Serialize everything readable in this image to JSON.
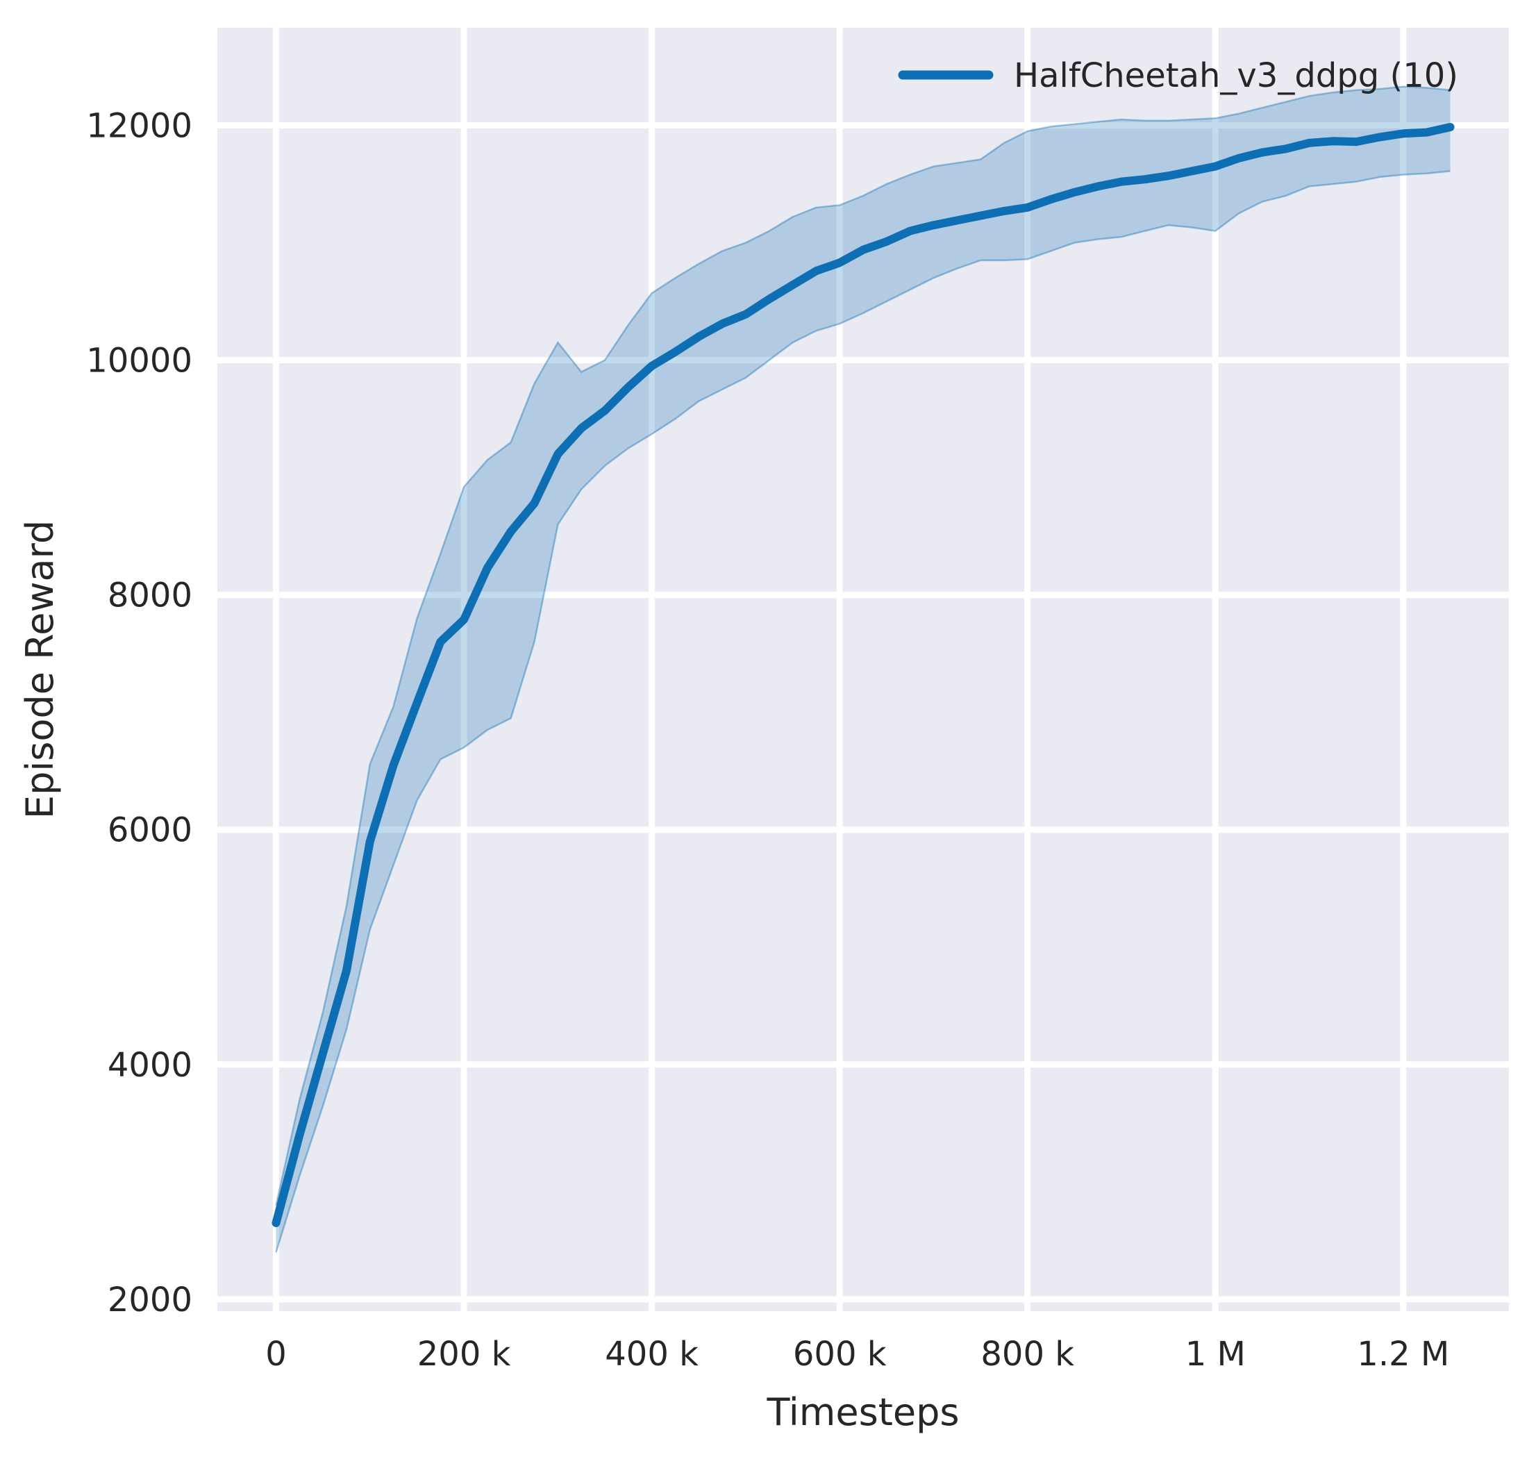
{
  "figure": {
    "background": "#ffffff",
    "plot_background": "#eaeaf2",
    "grid_color": "#ffffff",
    "text_color": "#262626"
  },
  "chart_data": {
    "type": "line",
    "title": "",
    "xlabel": "Timesteps",
    "ylabel": "Episode Reward",
    "grid": true,
    "legend_position": "upper right",
    "xlim": [
      -62500,
      1312500
    ],
    "ylim": [
      1899,
      12831
    ],
    "x_ticks": [
      {
        "value": 0,
        "label": "0"
      },
      {
        "value": 200000,
        "label": "200 k"
      },
      {
        "value": 400000,
        "label": "400 k"
      },
      {
        "value": 600000,
        "label": "600 k"
      },
      {
        "value": 800000,
        "label": "800 k"
      },
      {
        "value": 1000000,
        "label": "1 M"
      },
      {
        "value": 1200000,
        "label": "1.2 M"
      }
    ],
    "y_ticks": [
      {
        "value": 2000,
        "label": "2000"
      },
      {
        "value": 4000,
        "label": "4000"
      },
      {
        "value": 6000,
        "label": "6000"
      },
      {
        "value": 8000,
        "label": "8000"
      },
      {
        "value": 10000,
        "label": "10000"
      },
      {
        "value": 12000,
        "label": "12000"
      }
    ],
    "series": [
      {
        "name": "HalfCheetah_v3_ddpg (10)",
        "color": "#0d6eb4",
        "band_alpha": 0.25,
        "x": [
          0,
          25000,
          50000,
          75000,
          100000,
          125000,
          150000,
          175000,
          200000,
          225000,
          250000,
          275000,
          300000,
          325000,
          350000,
          375000,
          400000,
          425000,
          450000,
          475000,
          500000,
          525000,
          550000,
          575000,
          600000,
          625000,
          650000,
          675000,
          700000,
          725000,
          750000,
          775000,
          800000,
          825000,
          850000,
          875000,
          900000,
          925000,
          950000,
          975000,
          1000000,
          1025000,
          1050000,
          1075000,
          1100000,
          1125000,
          1150000,
          1175000,
          1200000,
          1225000,
          1250000
        ],
        "mean": [
          2650,
          3400,
          4100,
          4800,
          5900,
          6550,
          7080,
          7600,
          7790,
          8230,
          8540,
          8780,
          9200,
          9420,
          9570,
          9770,
          9950,
          10070,
          10200,
          10310,
          10390,
          10520,
          10640,
          10760,
          10830,
          10940,
          11010,
          11100,
          11150,
          11190,
          11230,
          11270,
          11300,
          11370,
          11430,
          11480,
          11520,
          11540,
          11570,
          11610,
          11650,
          11720,
          11770,
          11800,
          11850,
          11865,
          11860,
          11900,
          11930,
          11940,
          11985
        ],
        "band_low": [
          2400,
          3050,
          3650,
          4300,
          5150,
          5700,
          6250,
          6600,
          6700,
          6850,
          6950,
          7600,
          8600,
          8900,
          9100,
          9250,
          9370,
          9500,
          9650,
          9750,
          9850,
          10000,
          10150,
          10250,
          10310,
          10400,
          10500,
          10600,
          10700,
          10780,
          10850,
          10850,
          10860,
          10930,
          11000,
          11030,
          11050,
          11100,
          11150,
          11130,
          11100,
          11250,
          11350,
          11400,
          11480,
          11500,
          11520,
          11560,
          11580,
          11590,
          11610
        ],
        "band_high": [
          2800,
          3700,
          4450,
          5350,
          6560,
          7050,
          7800,
          8350,
          8920,
          9150,
          9300,
          9800,
          10150,
          9900,
          10000,
          10300,
          10570,
          10700,
          10820,
          10930,
          11000,
          11100,
          11220,
          11300,
          11320,
          11400,
          11500,
          11580,
          11650,
          11680,
          11710,
          11850,
          11950,
          11990,
          12010,
          12030,
          12050,
          12040,
          12040,
          12050,
          12060,
          12100,
          12150,
          12200,
          12250,
          12280,
          12300,
          12310,
          12330,
          12320,
          12300
        ]
      }
    ]
  }
}
